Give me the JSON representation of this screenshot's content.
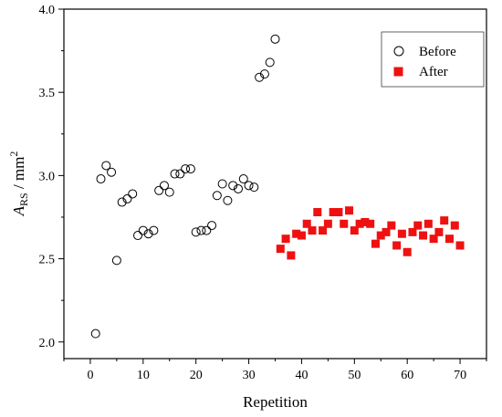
{
  "chart_data": {
    "type": "scatter",
    "title": "",
    "xlabel": "Repetition",
    "ylabel": {
      "italic": "A",
      "subscript": "RS",
      "rest": " / mm",
      "superscript": "2"
    },
    "xlim": [
      -5,
      75
    ],
    "ylim": [
      1.9,
      4.0
    ],
    "xticks": [
      0,
      10,
      20,
      30,
      40,
      50,
      60,
      70
    ],
    "xtick_labels": [
      "0",
      "10",
      "20",
      "30",
      "40",
      "50",
      "60",
      "70"
    ],
    "yticks": [
      2.0,
      2.5,
      3.0,
      3.5,
      4.0
    ],
    "ytick_labels": [
      "2.0",
      "2.5",
      "3.0",
      "3.5",
      "4.0"
    ],
    "grid": false,
    "legend_position": "top-right",
    "series": [
      {
        "name": "Before",
        "marker": "open-circle",
        "color": "#000000",
        "x": [
          1,
          2,
          3,
          4,
          5,
          6,
          7,
          8,
          9,
          10,
          11,
          12,
          13,
          14,
          15,
          16,
          17,
          18,
          19,
          20,
          21,
          22,
          23,
          24,
          25,
          26,
          27,
          28,
          29,
          30,
          31,
          32,
          33,
          34,
          35
        ],
        "y": [
          2.05,
          2.98,
          3.06,
          3.02,
          2.49,
          2.84,
          2.86,
          2.89,
          2.64,
          2.67,
          2.65,
          2.67,
          2.91,
          2.94,
          2.9,
          3.01,
          3.01,
          3.04,
          3.04,
          2.66,
          2.67,
          2.67,
          2.7,
          2.88,
          2.95,
          2.85,
          2.94,
          2.92,
          2.98,
          2.94,
          2.93,
          3.59,
          3.61,
          3.68,
          3.82
        ]
      },
      {
        "name": "After",
        "marker": "filled-square",
        "color": "#ee1111",
        "x": [
          36,
          37,
          38,
          39,
          40,
          41,
          42,
          43,
          44,
          45,
          46,
          47,
          48,
          49,
          50,
          51,
          52,
          53,
          54,
          55,
          56,
          57,
          58,
          59,
          60,
          61,
          62,
          63,
          64,
          65,
          66,
          67,
          68,
          69,
          70
        ],
        "y": [
          2.56,
          2.62,
          2.52,
          2.65,
          2.64,
          2.71,
          2.67,
          2.78,
          2.67,
          2.71,
          2.78,
          2.78,
          2.71,
          2.79,
          2.67,
          2.71,
          2.72,
          2.71,
          2.59,
          2.64,
          2.66,
          2.7,
          2.58,
          2.65,
          2.54,
          2.66,
          2.7,
          2.64,
          2.71,
          2.62,
          2.66,
          2.73,
          2.62,
          2.7,
          2.58
        ]
      }
    ]
  }
}
